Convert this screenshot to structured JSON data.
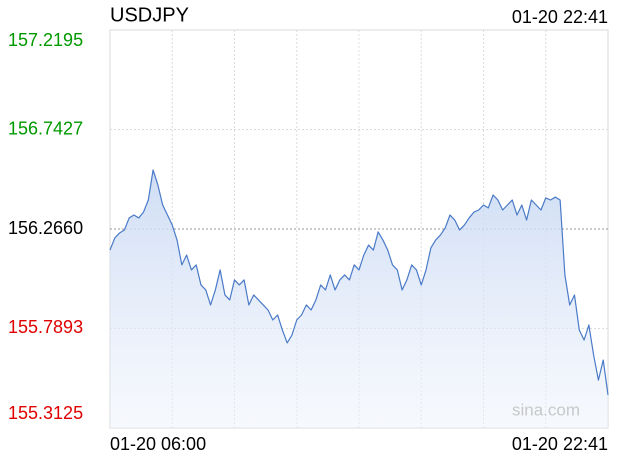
{
  "chart_data": {
    "type": "line",
    "title": "USDJPY",
    "timestamp": "01-20 22:41",
    "watermark": "sina.com",
    "ylim": [
      155.3125,
      157.2195
    ],
    "yticks": [
      157.2195,
      156.7427,
      {
        "value": 156.266,
        "label": "156.2660"
      },
      155.7893,
      155.3125
    ],
    "prev_close": 156.266,
    "up_color": "#009900",
    "down_color": "#e00000",
    "flat_color": "#000000",
    "grid": true,
    "categories": [
      "01-20 06:00",
      null,
      null,
      null,
      null,
      null,
      null,
      null,
      null,
      null,
      null,
      null,
      null,
      null,
      null,
      null,
      null,
      null,
      null,
      null,
      null,
      null,
      null,
      null,
      null,
      null,
      null,
      null,
      null,
      null,
      null,
      null,
      null,
      null,
      null,
      null,
      null,
      null,
      null,
      null,
      null,
      null,
      null,
      null,
      null,
      null,
      null,
      null,
      null,
      null,
      null,
      null,
      null,
      null,
      null,
      null,
      null,
      null,
      null,
      null,
      null,
      null,
      null,
      null,
      null,
      null,
      null,
      null,
      null,
      null,
      null,
      null,
      null,
      null,
      null,
      null,
      null,
      null,
      null,
      null,
      null,
      null,
      null,
      null,
      null,
      null,
      null,
      null,
      null,
      null,
      null,
      null,
      null,
      null,
      null,
      null,
      null,
      null,
      null,
      null,
      null,
      null,
      null,
      null,
      "01-20 22:41"
    ],
    "series": [
      {
        "name": "USDJPY",
        "color": "#4a7ac8",
        "values": [
          156.165,
          156.223,
          156.247,
          156.261,
          156.319,
          156.333,
          156.319,
          156.347,
          156.405,
          156.549,
          156.477,
          156.381,
          156.333,
          156.285,
          156.213,
          156.094,
          156.141,
          156.07,
          156.094,
          155.998,
          155.974,
          155.902,
          155.974,
          156.07,
          155.95,
          155.926,
          156.022,
          155.998,
          156.022,
          155.902,
          155.95,
          155.926,
          155.902,
          155.878,
          155.83,
          155.854,
          155.782,
          155.72,
          155.758,
          155.83,
          155.854,
          155.902,
          155.878,
          155.926,
          155.998,
          155.974,
          156.046,
          155.974,
          156.022,
          156.046,
          156.022,
          156.094,
          156.07,
          156.141,
          156.189,
          156.165,
          156.252,
          156.213,
          156.165,
          156.094,
          156.07,
          155.974,
          156.022,
          156.094,
          156.07,
          155.998,
          156.07,
          156.175,
          156.213,
          156.237,
          156.271,
          156.333,
          156.309,
          156.261,
          156.285,
          156.319,
          156.347,
          156.357,
          156.381,
          156.367,
          156.429,
          156.405,
          156.357,
          156.381,
          156.405,
          156.333,
          156.381,
          156.309,
          156.405,
          156.381,
          156.357,
          156.415,
          156.405,
          156.419,
          156.405,
          156.046,
          155.902,
          155.95,
          155.782,
          155.734,
          155.806,
          155.662,
          155.542,
          155.638,
          155.471
        ]
      }
    ]
  }
}
